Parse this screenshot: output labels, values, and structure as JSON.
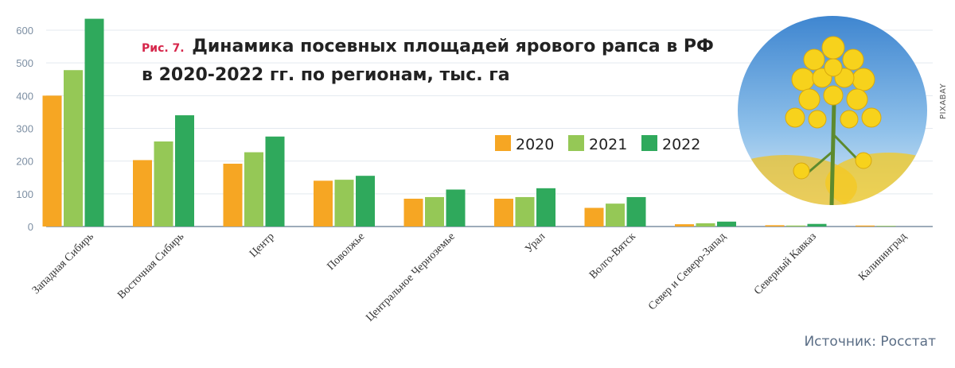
{
  "title": {
    "fig_label": "Рис. 7.",
    "line1": "Динамика посевных площадей ярового рапса в РФ",
    "line2": "в 2020-2022 гг. по регионам, тыс. га"
  },
  "source": "Источник: Росстат",
  "photo_credit": "PIXABAY",
  "photo_icon": "rapeseed-flower-photo",
  "colors": {
    "s2020": "#f6a623",
    "s2021": "#95c856",
    "s2022": "#2fa95c",
    "axis": "#7d8fa3",
    "grid": "#e3e9ef",
    "label": "#333333"
  },
  "chart_data": {
    "type": "bar",
    "categories": [
      "Западная Сибирь",
      "Восточная Сибирь",
      "Центр",
      "Поволжье",
      "Центральное Черноземье",
      "Урал",
      "Волго-Вятск",
      "Север и Северо-Запад",
      "Северный Кавказ",
      "Калининград"
    ],
    "series": [
      {
        "name": "2020",
        "values": [
          400,
          203,
          192,
          140,
          85,
          85,
          57,
          7,
          4,
          3
        ]
      },
      {
        "name": "2021",
        "values": [
          478,
          260,
          227,
          143,
          90,
          90,
          70,
          10,
          3,
          2
        ]
      },
      {
        "name": "2022",
        "values": [
          635,
          340,
          275,
          155,
          113,
          117,
          90,
          15,
          8,
          0
        ]
      }
    ],
    "yticks": [
      0,
      100,
      200,
      300,
      400,
      500,
      600
    ],
    "ylim": [
      0,
      650
    ],
    "grid": true,
    "legend": "right, inside plot"
  }
}
